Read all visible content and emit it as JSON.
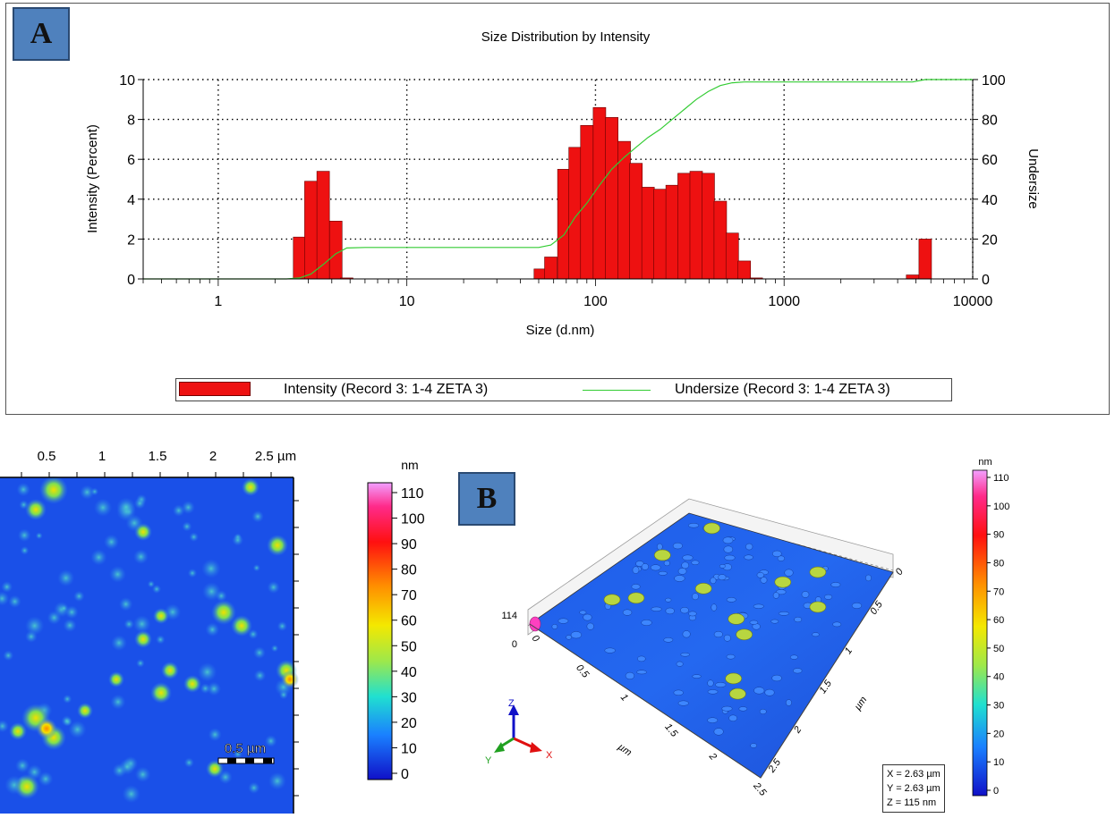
{
  "panel_a_label": "A",
  "panel_b_label": "B",
  "chart_data": {
    "type": "bar",
    "title": "Size Distribution by Intensity",
    "xlabel": "Size (d.nm)",
    "ylabel": "Intensity (Percent)",
    "y2label": "Undersize",
    "xscale": "log",
    "xlim": [
      0.4,
      10000
    ],
    "ylim": [
      0,
      10
    ],
    "y2lim": [
      0,
      100
    ],
    "xticks": [
      "1",
      "10",
      "100",
      "1000",
      "10000"
    ],
    "yticks": [
      "0",
      "2",
      "4",
      "6",
      "8",
      "10"
    ],
    "y2ticks": [
      "0",
      "20",
      "40",
      "60",
      "80",
      "100"
    ],
    "grid": true,
    "legend_position": "bottom",
    "series": [
      {
        "name": "Intensity (Record 3: 1-4 ZETA 3)",
        "color": "#ee1111",
        "x": [
          2.7,
          3.1,
          3.6,
          4.2,
          4.8,
          51,
          58,
          68,
          78,
          90,
          105,
          122,
          142,
          164,
          190,
          220,
          255,
          295,
          342,
          396,
          459,
          531,
          615,
          712,
          4800,
          5600
        ],
        "values": [
          2.1,
          4.9,
          5.4,
          2.9,
          0.05,
          0.5,
          1.1,
          5.5,
          6.6,
          7.7,
          8.6,
          8.1,
          6.9,
          5.8,
          4.6,
          4.5,
          4.7,
          5.3,
          5.4,
          5.3,
          3.9,
          2.3,
          0.9,
          0.05,
          0.2,
          2.0
        ]
      },
      {
        "name": "Undersize (Record 3: 1-4 ZETA 3)",
        "color": "#33cc33",
        "x": [
          0.4,
          2.3,
          2.7,
          3.1,
          3.6,
          4.2,
          4.8,
          6,
          10,
          30,
          50,
          58,
          68,
          78,
          90,
          105,
          122,
          142,
          164,
          190,
          220,
          255,
          295,
          342,
          396,
          459,
          531,
          615,
          1000,
          3000,
          4800,
          5600,
          10000
        ],
        "values": [
          0,
          0,
          0.5,
          2.4,
          7.2,
          12.6,
          15.5,
          15.8,
          15.8,
          15.8,
          15.8,
          17,
          22,
          31,
          38,
          47,
          55,
          61,
          66,
          71,
          75,
          80,
          85,
          90,
          94,
          97,
          98.4,
          98.8,
          98.8,
          98.8,
          98.8,
          100,
          100
        ]
      }
    ]
  },
  "afm_2d": {
    "x_ticks": [
      "0.5",
      "1",
      "1.5",
      "2",
      "2.5 µm"
    ],
    "scale_bar": "0.5 µm",
    "colorbar_unit": "nm",
    "colorbar_ticks": [
      "110",
      "100",
      "90",
      "80",
      "70",
      "60",
      "50",
      "40",
      "30",
      "20",
      "10",
      "0"
    ]
  },
  "afm_3d": {
    "z_top": "114",
    "z_bottom": "0",
    "x_axis_ticks": [
      "0",
      "0.5",
      "1",
      "1.5",
      "2",
      "2.5"
    ],
    "y_axis_ticks": [
      "0",
      "0.5",
      "1",
      "1.5",
      "2",
      "2.5"
    ],
    "axis_unit": "µm",
    "axis_labels": {
      "x": "X",
      "y": "Y",
      "z": "Z"
    },
    "colorbar_unit": "nm",
    "colorbar_ticks": [
      "110",
      "100",
      "90",
      "80",
      "70",
      "60",
      "50",
      "40",
      "30",
      "20",
      "10",
      "0"
    ],
    "info": {
      "x": "X = 2.63 µm",
      "y": "Y = 2.63 µm",
      "z": "Z = 115 nm"
    }
  },
  "colors": {
    "bar": "#ee1111",
    "undersize": "#33cc33",
    "panel_tag": "#4f81bd"
  }
}
